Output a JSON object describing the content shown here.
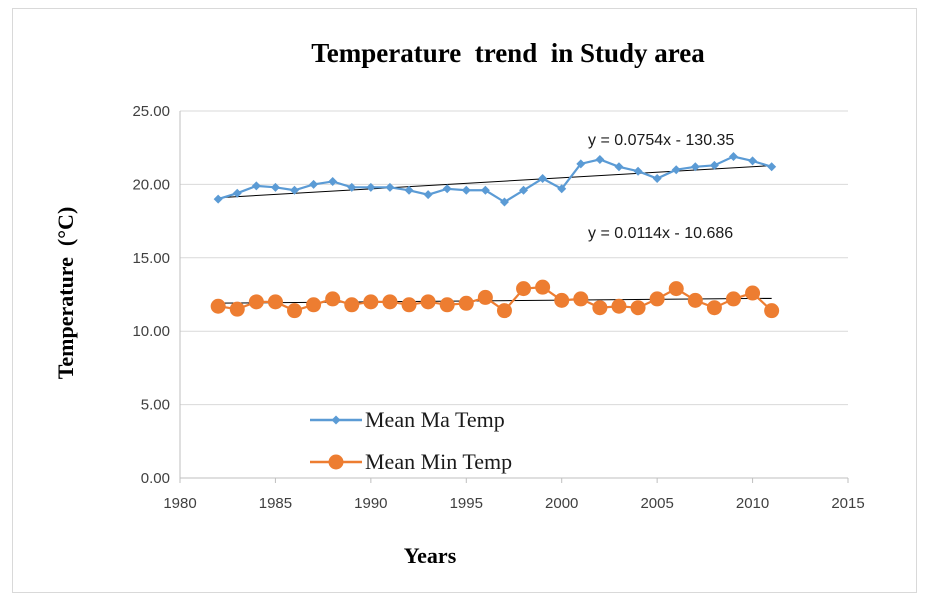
{
  "chart_data": {
    "type": "line",
    "title": "Temperature  trend  in Study area",
    "xlabel": "Years",
    "ylabel": "Temperature  (°C)",
    "xlim": [
      1980,
      2015
    ],
    "ylim": [
      0,
      25
    ],
    "x_ticks": [
      "1980",
      "1985",
      "1990",
      "1995",
      "2000",
      "2005",
      "2010",
      "2015"
    ],
    "y_ticks": [
      "0.00",
      "5.00",
      "10.00",
      "15.00",
      "20.00",
      "25.00"
    ],
    "grid": true,
    "legend_position": "lower-left",
    "x": [
      1982,
      1983,
      1984,
      1985,
      1986,
      1987,
      1988,
      1989,
      1990,
      1991,
      1992,
      1993,
      1994,
      1995,
      1996,
      1997,
      1998,
      1999,
      2000,
      2001,
      2002,
      2003,
      2004,
      2005,
      2006,
      2007,
      2008,
      2009,
      2010,
      2011
    ],
    "series": [
      {
        "name": "Mean Ma Temp",
        "color": "#5b9bd5",
        "marker": "diamond",
        "values": [
          19.0,
          19.4,
          19.9,
          19.8,
          19.6,
          20.0,
          20.2,
          19.8,
          19.8,
          19.8,
          19.6,
          19.3,
          19.7,
          19.6,
          19.6,
          18.8,
          19.6,
          20.4,
          19.7,
          21.4,
          21.7,
          21.2,
          20.9,
          20.4,
          21.0,
          21.2,
          21.3,
          21.9,
          21.6,
          21.2
        ],
        "trend": {
          "slope": 0.0754,
          "intercept": -130.35,
          "equation": "y = 0.0754x - 130.35"
        }
      },
      {
        "name": "Mean Min Temp",
        "color": "#ed7d31",
        "marker": "circle",
        "values": [
          11.7,
          11.5,
          12.0,
          12.0,
          11.4,
          11.8,
          12.2,
          11.8,
          12.0,
          12.0,
          11.8,
          12.0,
          11.8,
          11.9,
          12.3,
          11.4,
          12.9,
          13.0,
          12.1,
          12.2,
          11.6,
          11.7,
          11.6,
          12.2,
          12.9,
          12.1,
          11.6,
          12.2,
          12.6,
          11.4
        ],
        "trend": {
          "slope": 0.0114,
          "intercept": -10.686,
          "equation": "y = 0.0114x - 10.686"
        }
      }
    ]
  }
}
